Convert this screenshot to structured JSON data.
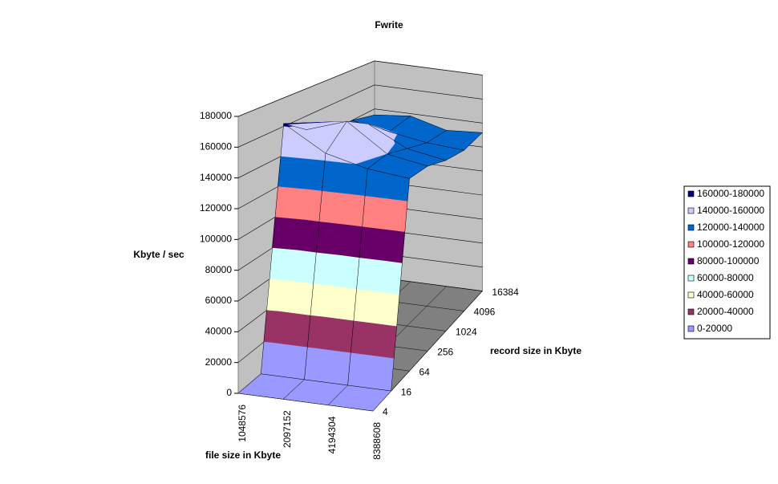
{
  "chart_data": {
    "type": "surface3d",
    "title": "Fwrite",
    "z_axis_label": "Kbyte / sec",
    "x_axis_label": "file size in Kbyte",
    "depth_axis_label": "record size in Kbyte",
    "categories": [
      "1048576",
      "2097152",
      "4194304",
      "8388608"
    ],
    "depth_categories": [
      "4",
      "16",
      "64",
      "256",
      "1024",
      "4096",
      "16384"
    ],
    "values": [
      [
        0,
        0,
        0,
        0
      ],
      [
        0,
        0,
        0,
        0
      ],
      [
        162000,
        145000,
        138000,
        135000
      ],
      [
        150000,
        160000,
        140000,
        135000
      ],
      [
        140000,
        150000,
        135000,
        130000
      ],
      [
        140000,
        135000,
        130000,
        128000
      ],
      [
        135000,
        138000,
        130000,
        132000
      ]
    ],
    "zlim": [
      0,
      180000
    ],
    "zticks": [
      0,
      20000,
      40000,
      60000,
      80000,
      100000,
      120000,
      140000,
      160000,
      180000
    ],
    "grid": true,
    "legend_position": "right",
    "legend": [
      {
        "name": "160000-180000",
        "color": "#000080"
      },
      {
        "name": "140000-160000",
        "color": "#ccccff"
      },
      {
        "name": "120000-140000",
        "color": "#0066cc"
      },
      {
        "name": "100000-120000",
        "color": "#ff8080"
      },
      {
        "name": "80000-100000",
        "color": "#660066"
      },
      {
        "name": "60000-80000",
        "color": "#ccffff"
      },
      {
        "name": "40000-60000",
        "color": "#ffffcc"
      },
      {
        "name": "20000-40000",
        "color": "#993366"
      },
      {
        "name": "0-20000",
        "color": "#9999ff"
      }
    ]
  }
}
